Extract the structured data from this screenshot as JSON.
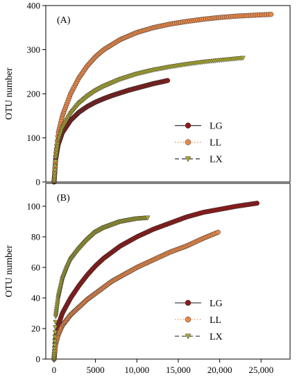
{
  "chart_data": [
    {
      "type": "scatter",
      "panel_label": "(A)",
      "ylabel": "OTU number",
      "xlabel": "",
      "xlim": [
        -1000,
        28500
      ],
      "ylim": [
        0,
        400
      ],
      "y_ticks": [
        0,
        100,
        200,
        300,
        400
      ],
      "x_ticks": [],
      "x_tick_labels": [],
      "grid": false,
      "legend_position": "bottom-right",
      "series": [
        {
          "name": "LG",
          "color": "#8B1A1A",
          "marker": "circle",
          "line": "solid",
          "x": [
            0,
            200,
            500,
            1000,
            2000,
            3000,
            4000,
            5000,
            6000,
            7000,
            8000,
            9000,
            10000,
            11000,
            12000,
            13000,
            13700
          ],
          "y": [
            0,
            52,
            85,
            112,
            140,
            158,
            171,
            181,
            189,
            196,
            202,
            208,
            213,
            218,
            223,
            227,
            230
          ]
        },
        {
          "name": "LL",
          "color": "#E8894A",
          "marker": "circle",
          "line": "dotted",
          "x": [
            0,
            200,
            500,
            1000,
            2000,
            3000,
            4000,
            5000,
            6000,
            8000,
            10000,
            12000,
            14000,
            16000,
            18000,
            20000,
            22000,
            24000,
            26200
          ],
          "y": [
            0,
            60,
            110,
            150,
            200,
            236,
            263,
            284,
            300,
            323,
            339,
            350,
            358,
            364,
            369,
            373,
            376,
            378,
            380
          ]
        },
        {
          "name": "LX",
          "color": "#A8A830",
          "marker": "triangle-down",
          "line": "dashed",
          "x": [
            0,
            200,
            500,
            1000,
            2000,
            3000,
            4000,
            5000,
            6000,
            8000,
            10000,
            12000,
            14000,
            16000,
            18000,
            20000,
            22800
          ],
          "y": [
            0,
            55,
            92,
            122,
            155,
            178,
            194,
            207,
            217,
            233,
            245,
            254,
            261,
            267,
            272,
            276,
            281
          ]
        }
      ]
    },
    {
      "type": "scatter",
      "panel_label": "(B)",
      "ylabel": "OTU number",
      "xlabel": "",
      "xlim": [
        -1000,
        28500
      ],
      "ylim": [
        0,
        115
      ],
      "y_ticks": [
        0,
        20,
        40,
        60,
        80,
        100
      ],
      "x_ticks": [
        0,
        5000,
        10000,
        15000,
        20000,
        25000
      ],
      "x_tick_labels": [
        "0",
        "5000",
        "10,000",
        "15,000",
        "20,000",
        "25,000"
      ],
      "grid": false,
      "legend_position": "bottom-right",
      "series": [
        {
          "name": "LG",
          "color": "#8B1A1A",
          "marker": "circle",
          "line": "solid",
          "x": [
            0,
            200,
            500,
            1000,
            2000,
            3000,
            4000,
            5000,
            6000,
            7000,
            8000,
            10000,
            12000,
            14000,
            16000,
            18000,
            20000,
            22000,
            24500
          ],
          "y": [
            0,
            15,
            22,
            30,
            40,
            48,
            55,
            61,
            66,
            70,
            74,
            80,
            85,
            89,
            93,
            96,
            98,
            100,
            102
          ]
        },
        {
          "name": "LL",
          "color": "#E8894A",
          "marker": "circle",
          "line": "dotted",
          "x": [
            0,
            200,
            500,
            1000,
            2000,
            3000,
            4000,
            5000,
            6000,
            7000,
            8000,
            10000,
            12000,
            14000,
            16000,
            18000,
            19800
          ],
          "y": [
            0,
            10,
            16,
            22,
            29,
            34,
            39,
            43,
            47,
            51,
            54,
            60,
            65,
            70,
            74,
            79,
            83
          ]
        },
        {
          "name": "LX",
          "color": "#A8A830",
          "marker": "triangle-down",
          "line": "dashed",
          "x": [
            0,
            200,
            500,
            1000,
            1500,
            2000,
            3000,
            4000,
            5000,
            6000,
            7000,
            8000,
            9000,
            10000,
            11300
          ],
          "y": [
            0,
            28,
            40,
            52,
            59,
            65,
            72,
            78,
            83,
            86,
            88,
            90,
            91,
            92,
            92.5
          ]
        }
      ]
    }
  ]
}
